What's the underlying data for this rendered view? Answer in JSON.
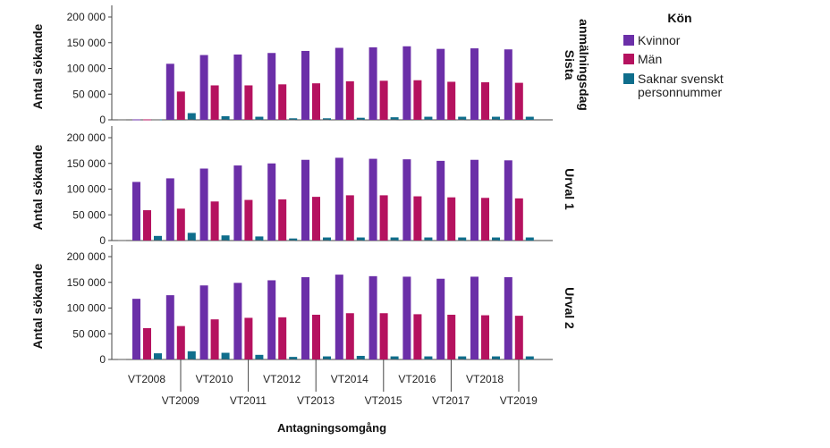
{
  "chart_data": {
    "type": "bar",
    "title": "",
    "xlabel": "Antagningsomgång",
    "ylabel": "Antal sökande",
    "ylim": [
      0,
      200000
    ],
    "yticks": [
      "0",
      "50 000",
      "100 000",
      "150 000",
      "200 000"
    ],
    "ytick_values": [
      0,
      50000,
      100000,
      150000,
      200000
    ],
    "categories": [
      "VT2008",
      "VT2009",
      "VT2010",
      "VT2011",
      "VT2012",
      "VT2013",
      "VT2014",
      "VT2015",
      "VT2016",
      "VT2017",
      "VT2018",
      "VT2019"
    ],
    "legend": {
      "title": "Kön",
      "placement": "right",
      "entries": [
        "Kvinnor",
        "Män",
        "Saknar svenskt personnummer"
      ]
    },
    "colors": {
      "Kvinnor": "#6b2fa8",
      "Män": "#b5125f",
      "Saknar svenskt personnummer": "#0f6e8c"
    },
    "grid": false,
    "panels": [
      {
        "label": [
          "Sista",
          "anmälningsdag"
        ],
        "series": [
          {
            "name": "Kvinnor",
            "values": [
              null,
              109000,
              126000,
              127000,
              130000,
              134000,
              140000,
              141000,
              143000,
              138000,
              139000,
              137000
            ]
          },
          {
            "name": "Män",
            "values": [
              null,
              55000,
              67000,
              67000,
              69000,
              71000,
              75000,
              76000,
              77000,
              74000,
              73000,
              72000
            ]
          },
          {
            "name": "Saknar svenskt personnummer",
            "values": [
              null,
              13000,
              7000,
              6000,
              3000,
              3000,
              4000,
              5000,
              6000,
              6000,
              6000,
              6000
            ]
          }
        ]
      },
      {
        "label": [
          "Urval 1"
        ],
        "series": [
          {
            "name": "Kvinnor",
            "values": [
              114000,
              121000,
              140000,
              146000,
              150000,
              157000,
              161000,
              159000,
              158000,
              155000,
              157000,
              156000
            ]
          },
          {
            "name": "Män",
            "values": [
              59000,
              62000,
              76000,
              79000,
              80000,
              85000,
              88000,
              88000,
              86000,
              84000,
              83000,
              82000
            ]
          },
          {
            "name": "Saknar svenskt personnummer",
            "values": [
              9000,
              15000,
              10000,
              8000,
              4000,
              6000,
              6000,
              6000,
              6000,
              6000,
              6000,
              6000
            ]
          }
        ]
      },
      {
        "label": [
          "Urval 2"
        ],
        "series": [
          {
            "name": "Kvinnor",
            "values": [
              118000,
              125000,
              144000,
              149000,
              154000,
              160000,
              165000,
              162000,
              161000,
              157000,
              161000,
              160000
            ]
          },
          {
            "name": "Män",
            "values": [
              61000,
              65000,
              78000,
              81000,
              82000,
              87000,
              90000,
              90000,
              88000,
              87000,
              86000,
              85000
            ]
          },
          {
            "name": "Saknar svenskt personnummer",
            "values": [
              12000,
              16000,
              13000,
              9000,
              5000,
              6000,
              7000,
              6000,
              6000,
              6000,
              6000,
              6000
            ]
          }
        ]
      }
    ]
  }
}
